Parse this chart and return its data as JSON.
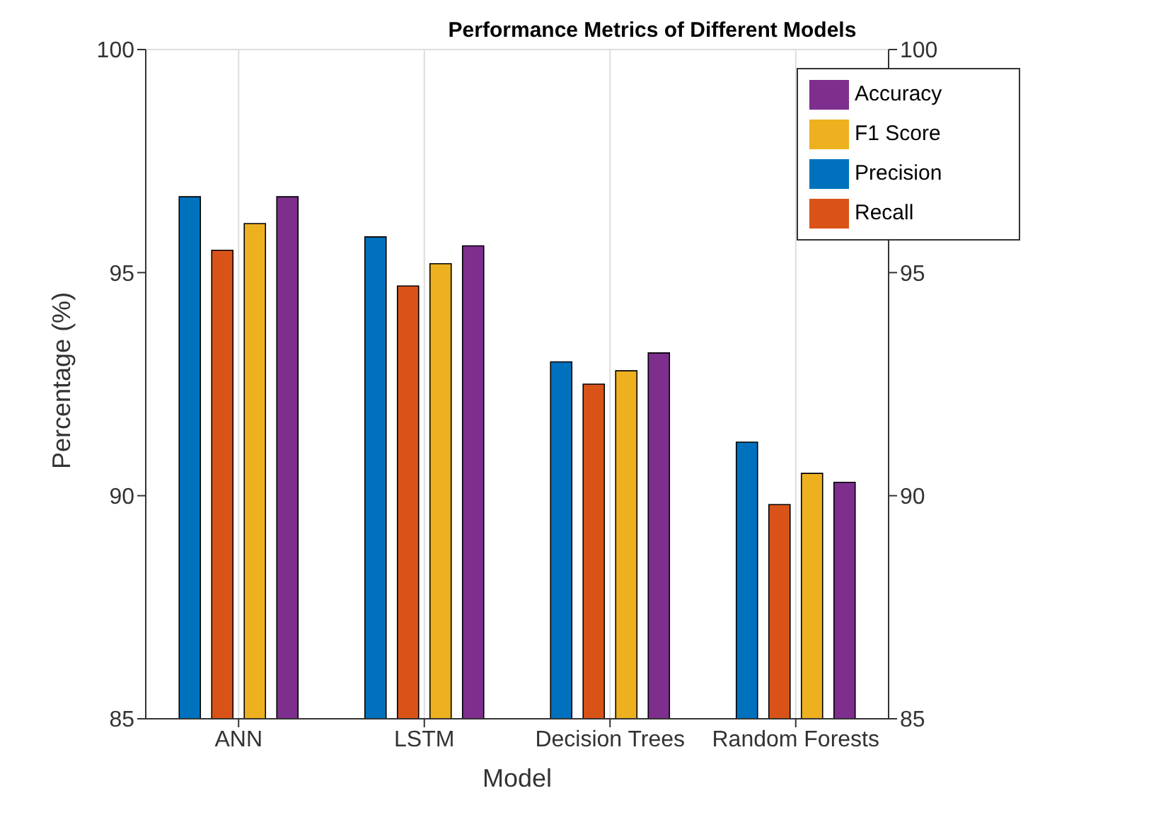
{
  "chart_data": {
    "type": "bar",
    "title": "Performance Metrics of Different Models",
    "xlabel": "Model",
    "ylabel": "Percentage (%)",
    "categories": [
      "ANN",
      "LSTM",
      "Decision Trees",
      "Random Forests"
    ],
    "series": [
      {
        "name": "Precision",
        "color": "#0072bd",
        "values": [
          96.7,
          95.8,
          93.0,
          91.2
        ]
      },
      {
        "name": "Recall",
        "color": "#d95319",
        "values": [
          95.5,
          94.7,
          92.5,
          89.8
        ]
      },
      {
        "name": "F1 Score",
        "color": "#edb120",
        "values": [
          96.1,
          95.2,
          92.8,
          90.5
        ]
      },
      {
        "name": "Accuracy",
        "color": "#7e2f8e",
        "values": [
          96.7,
          95.6,
          93.2,
          90.3
        ]
      }
    ],
    "ylim": [
      85,
      100
    ],
    "yticks": [
      85,
      90,
      95,
      100
    ],
    "y2lim": [
      85,
      100
    ],
    "y2ticks": [
      85,
      90,
      95,
      100
    ],
    "grid": true,
    "legend": "top right"
  }
}
